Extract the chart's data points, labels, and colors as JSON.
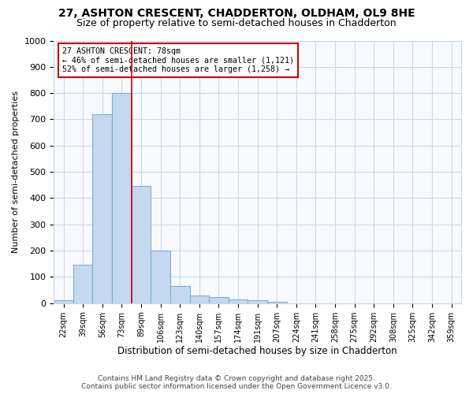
{
  "title1": "27, ASHTON CRESCENT, CHADDERTON, OLDHAM, OL9 8HE",
  "title2": "Size of property relative to semi-detached houses in Chadderton",
  "xlabel": "Distribution of semi-detached houses by size in Chadderton",
  "ylabel": "Number of semi-detached properties",
  "categories": [
    "22sqm",
    "39sqm",
    "56sqm",
    "73sqm",
    "89sqm",
    "106sqm",
    "123sqm",
    "140sqm",
    "157sqm",
    "174sqm",
    "191sqm",
    "207sqm",
    "224sqm",
    "241sqm",
    "258sqm",
    "275sqm",
    "292sqm",
    "308sqm",
    "325sqm",
    "342sqm",
    "359sqm"
  ],
  "values": [
    10,
    145,
    720,
    800,
    445,
    200,
    65,
    28,
    22,
    15,
    10,
    5,
    0,
    0,
    0,
    0,
    0,
    0,
    0,
    0,
    0
  ],
  "bar_color": "#c5d8f0",
  "bar_edge_color": "#7aafd4",
  "vline_x": 3.5,
  "vline_color": "#cc0000",
  "annotation_title": "27 ASHTON CRESCENT: 78sqm",
  "annotation_line1": "← 46% of semi-detached houses are smaller (1,121)",
  "annotation_line2": "52% of semi-detached houses are larger (1,258) →",
  "annotation_box_color": "#cc0000",
  "ylim": [
    0,
    1000
  ],
  "yticks": [
    0,
    100,
    200,
    300,
    400,
    500,
    600,
    700,
    800,
    900,
    1000
  ],
  "footnote1": "Contains HM Land Registry data © Crown copyright and database right 2025.",
  "footnote2": "Contains public sector information licensed under the Open Government Licence v3.0.",
  "bg_color": "#ffffff",
  "plot_bg_color": "#f8faff",
  "grid_color": "#c8d8ee",
  "title_fontsize": 10,
  "subtitle_fontsize": 9
}
